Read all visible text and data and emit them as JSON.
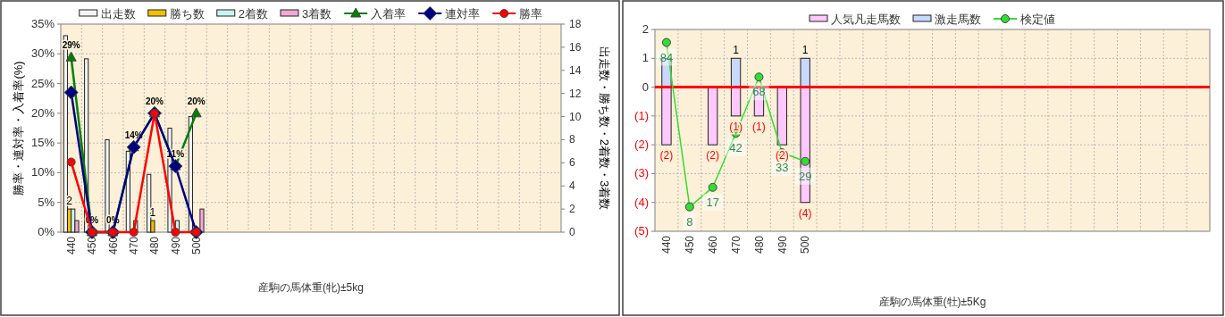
{
  "chart_data": [
    {
      "type": "bar",
      "categories": [
        "440",
        "450",
        "460",
        "470",
        "480",
        "490",
        "500",
        null,
        null,
        null,
        null,
        null,
        null,
        null,
        null,
        null,
        null,
        null,
        null,
        null,
        null,
        null,
        null,
        null
      ],
      "xlabel": "産駒の馬体重(牝)±5kg",
      "ylabel": "勝率・連対率・入着率(%)",
      "y2label": "出走数・勝ち数・2着数・3着数",
      "ylim": [
        0,
        35
      ],
      "yticks": [
        {
          "value": 0,
          "label": "0%"
        },
        {
          "value": 5,
          "label": "5%"
        },
        {
          "value": 10,
          "label": "10%"
        },
        {
          "value": 15,
          "label": "15%"
        },
        {
          "value": 20,
          "label": "20%"
        },
        {
          "value": 25,
          "label": "25%"
        },
        {
          "value": 30,
          "label": "30%"
        },
        {
          "value": 35,
          "label": "35%"
        }
      ],
      "y2lim": [
        0,
        18
      ],
      "y2ticks": [
        0,
        2,
        4,
        6,
        8,
        10,
        12,
        14,
        16,
        18
      ],
      "grid": true,
      "legend": "top",
      "series": [
        {
          "name": "出走数",
          "color": "#f4f4f4",
          "axis": "y2",
          "values": [
            17,
            15,
            8,
            7,
            5,
            9,
            10,
            null,
            null,
            null,
            null,
            null,
            null,
            null,
            null,
            null,
            null,
            null,
            null,
            null,
            null,
            null,
            null,
            null
          ]
        },
        {
          "name": "勝ち数",
          "color": "#f0c000",
          "axis": "y2",
          "values": [
            2,
            0,
            0,
            0,
            1,
            0,
            0,
            null,
            null,
            null,
            null,
            null,
            null,
            null,
            null,
            null,
            null,
            null,
            null,
            null,
            null,
            null,
            null,
            null
          ],
          "value_labels": [
            "2",
            null,
            null,
            null,
            "1",
            null,
            null,
            null,
            null,
            null,
            null,
            null,
            null,
            null,
            null,
            null,
            null,
            null,
            null,
            null,
            null,
            null,
            null,
            null
          ]
        },
        {
          "name": "2着数",
          "color": "#c8f4f4",
          "axis": "y2",
          "values": [
            2,
            0,
            0,
            1,
            0,
            1,
            0,
            null,
            null,
            null,
            null,
            null,
            null,
            null,
            null,
            null,
            null,
            null,
            null,
            null,
            null,
            null,
            null,
            null
          ]
        },
        {
          "name": "3着数",
          "color": "#f4a8d8",
          "axis": "y2",
          "values": [
            1,
            0,
            0,
            0,
            0,
            0,
            2,
            null,
            null,
            null,
            null,
            null,
            null,
            null,
            null,
            null,
            null,
            null,
            null,
            null,
            null,
            null,
            null,
            null
          ]
        },
        {
          "name": "入着率",
          "type": "line",
          "color": "#008000",
          "marker": "triangle",
          "values": [
            29.4,
            0,
            0,
            14.3,
            20,
            11.1,
            20,
            null,
            null,
            null,
            null,
            null,
            null,
            null,
            null,
            null,
            null,
            null,
            null,
            null,
            null,
            null,
            null,
            null
          ],
          "value_labels": [
            "29%",
            "0%",
            "0%",
            "14%",
            "20%",
            "11%",
            "20%",
            null,
            null,
            null,
            null,
            null,
            null,
            null,
            null,
            null,
            null,
            null,
            null,
            null,
            null,
            null,
            null,
            null
          ]
        },
        {
          "name": "連対率",
          "type": "line",
          "color": "#000080",
          "marker": "diamond",
          "values": [
            23.5,
            0,
            0,
            14.3,
            20,
            11.1,
            0,
            null,
            null,
            null,
            null,
            null,
            null,
            null,
            null,
            null,
            null,
            null,
            null,
            null,
            null,
            null,
            null,
            null
          ]
        },
        {
          "name": "勝率",
          "type": "line",
          "color": "#ff0000",
          "marker": "circle",
          "values": [
            11.8,
            0,
            0,
            0,
            20,
            0,
            0,
            null,
            null,
            null,
            null,
            null,
            null,
            null,
            null,
            null,
            null,
            null,
            null,
            null,
            null,
            null,
            null,
            null
          ]
        }
      ]
    },
    {
      "type": "bar",
      "stacked": true,
      "categories": [
        "440",
        "450",
        "460",
        "470",
        "480",
        "490",
        "500",
        null,
        null,
        null,
        null,
        null,
        null,
        null,
        null,
        null,
        null,
        null,
        null,
        null,
        null,
        null,
        null,
        null
      ],
      "xlabel": "産駒の馬体重(牡)±5Kg",
      "ylim": [
        -5,
        2
      ],
      "yticks": [
        2,
        1,
        0,
        {
          "value": -1,
          "label": "(1)"
        },
        {
          "value": -2,
          "label": "(2)"
        },
        {
          "value": -3,
          "label": "(3)"
        },
        {
          "value": -4,
          "label": "(4)"
        },
        {
          "value": -5,
          "label": "(5)"
        }
      ],
      "y2lim": [
        -3.3,
        90
      ],
      "grid": true,
      "legend": "top",
      "ref_lines": [
        {
          "axis": "y",
          "value": 0,
          "color": "#ff0000"
        }
      ],
      "series": [
        {
          "name": "人気凡走馬数",
          "color": "#ffc8ff",
          "values": [
            -2,
            0,
            -2,
            -1,
            -1,
            -2,
            -4,
            null,
            null,
            null,
            null,
            null,
            null,
            null,
            null,
            null,
            null,
            null,
            null,
            null,
            null,
            null,
            null,
            null
          ],
          "value_labels": [
            "(2)",
            null,
            "(2)",
            "(1)",
            "(1)",
            "(2)",
            "(4)",
            null,
            null,
            null,
            null,
            null,
            null,
            null,
            null,
            null,
            null,
            null,
            null,
            null,
            null,
            null,
            null,
            null
          ]
        },
        {
          "name": "激走馬数",
          "color": "#c8d8ff",
          "values": [
            1,
            0,
            0,
            1,
            0,
            0,
            1,
            null,
            null,
            null,
            null,
            null,
            null,
            null,
            null,
            null,
            null,
            null,
            null,
            null,
            null,
            null,
            null,
            null
          ],
          "value_labels": [
            null,
            null,
            null,
            "1",
            null,
            null,
            "1",
            null,
            null,
            null,
            null,
            null,
            null,
            null,
            null,
            null,
            null,
            null,
            null,
            null,
            null,
            null,
            null,
            null
          ]
        },
        {
          "name": "検定値",
          "type": "line",
          "axis": "y2",
          "color": "#33dd33",
          "marker": "circle",
          "values": [
            84,
            8,
            17,
            42,
            68,
            33,
            29,
            null,
            null,
            null,
            null,
            null,
            null,
            null,
            null,
            null,
            null,
            null,
            null,
            null,
            null,
            null,
            null,
            null
          ],
          "value_labels": [
            "84",
            "8",
            "17",
            "42",
            "68",
            "33",
            "29",
            null,
            null,
            null,
            null,
            null,
            null,
            null,
            null,
            null,
            null,
            null,
            null,
            null,
            null,
            null,
            null,
            null
          ]
        }
      ]
    }
  ]
}
